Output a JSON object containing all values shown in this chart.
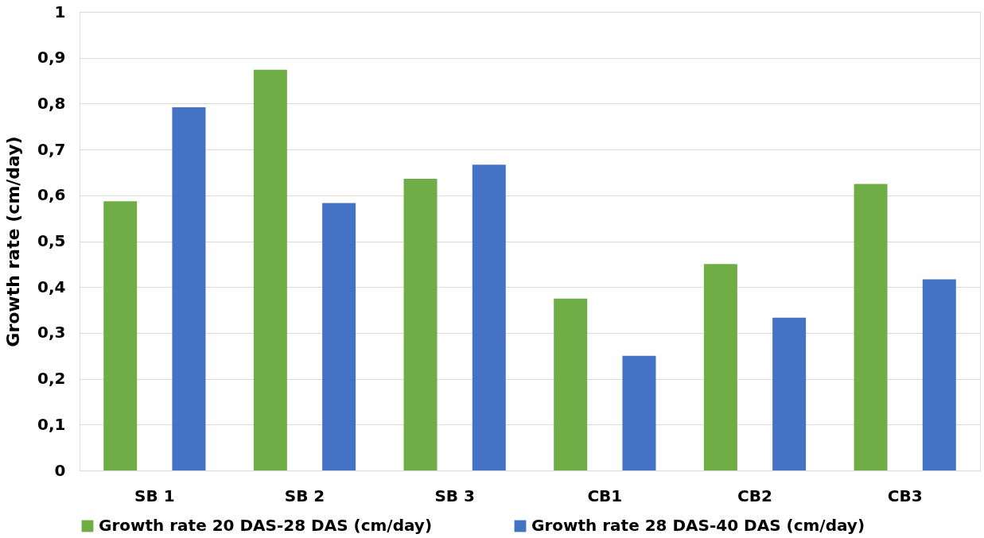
{
  "chart_data": {
    "type": "bar",
    "ylabel": "Growth rate (cm/day)",
    "categories": [
      "SB 1",
      "SB 2",
      "SB 3",
      "CB1",
      "CB2",
      "CB3"
    ],
    "series": [
      {
        "name": "Growth rate 20 DAS-28 DAS (cm/day)",
        "color": "#70ad47",
        "values": [
          0.587,
          0.874,
          0.636,
          0.375,
          0.45,
          0.625
        ]
      },
      {
        "name": "Growth rate 28 DAS-40 DAS (cm/day)",
        "color": "#4472c4",
        "values": [
          0.792,
          0.583,
          0.667,
          0.25,
          0.333,
          0.417
        ]
      }
    ],
    "ylim": [
      0,
      1
    ],
    "yticks": [
      0,
      {
        "value": 0.1,
        "label": "0,1"
      },
      {
        "value": 0.2,
        "label": "0,2"
      },
      {
        "value": 0.3,
        "label": "0,3"
      },
      {
        "value": 0.4,
        "label": "0,4"
      },
      {
        "value": 0.5,
        "label": "0,5"
      },
      {
        "value": 0.6,
        "label": "0,6"
      },
      {
        "value": 0.7,
        "label": "0,7"
      },
      {
        "value": 0.8,
        "label": "0,8"
      },
      {
        "value": 0.9,
        "label": "0,9"
      },
      1
    ],
    "grid": "y",
    "legend": "bottom"
  }
}
